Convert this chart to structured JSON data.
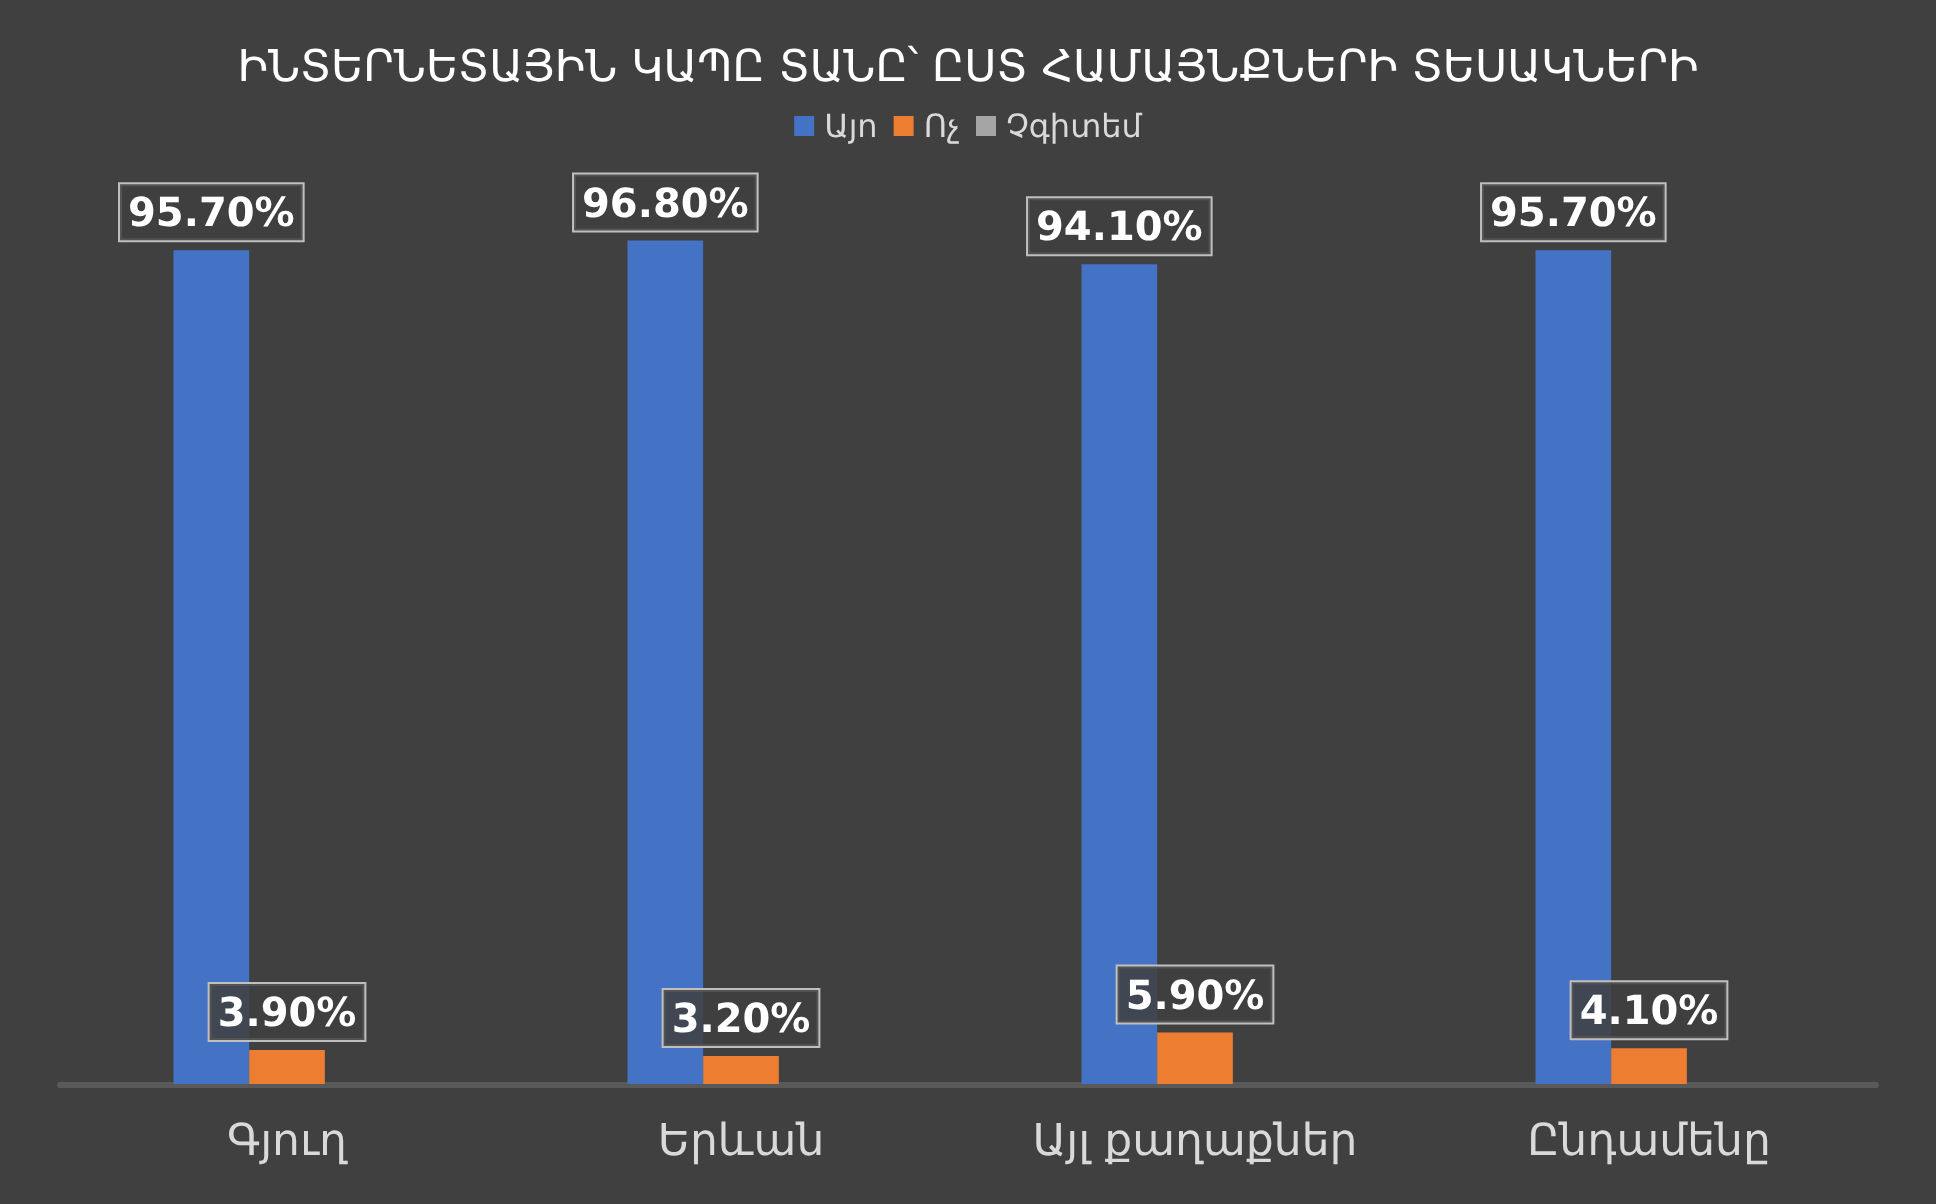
{
  "chart_data": {
    "type": "bar",
    "title": "ԻՆՏԵՐՆԵՏԱՅԻՆ ԿԱՊԸ ՏԱՆԸ՝ ԸՍՏ ՀԱՄԱՅՆՔՆԵՐԻ ՏԵՍԱԿՆԵՐԻ",
    "categories": [
      "Գյուղ",
      "Երևան",
      "Այլ քաղաքներ",
      "Ընդամենը"
    ],
    "series": [
      {
        "name": "Այո",
        "color": "#4472c4",
        "values": [
          95.7,
          96.8,
          94.1,
          95.7
        ],
        "value_labels": [
          "95.70%",
          "96.80%",
          "94.10%",
          "95.70%"
        ]
      },
      {
        "name": "Ոչ",
        "color": "#ed7d31",
        "values": [
          3.9,
          3.2,
          5.9,
          4.1
        ],
        "value_labels": [
          "3.90%",
          "3.20%",
          "5.90%",
          "4.10%"
        ]
      },
      {
        "name": "Չգիտեմ",
        "color": "#a5a5a5",
        "values": [
          null,
          null,
          null,
          null
        ]
      }
    ],
    "legend": "top"
  }
}
